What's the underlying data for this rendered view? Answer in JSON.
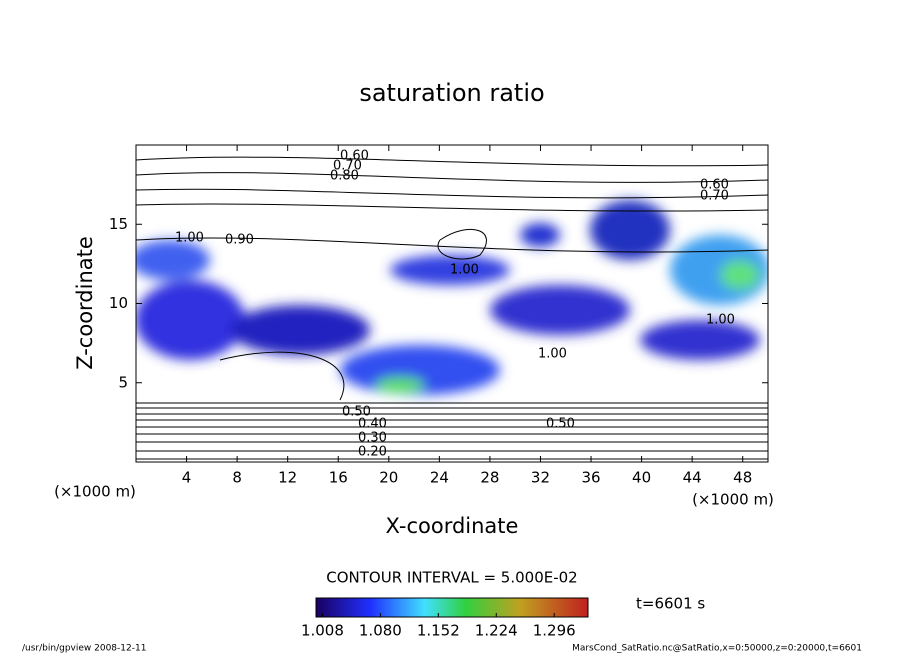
{
  "chart_data": {
    "type": "contour",
    "title": "saturation ratio",
    "xlabel": "X-coordinate",
    "ylabel": "Z-coordinate",
    "x_unit": "(×1000 m)",
    "y_unit": "(×1000 m)",
    "xlim": [
      0,
      50
    ],
    "xticks": [
      4,
      8,
      12,
      16,
      20,
      24,
      28,
      32,
      36,
      40,
      44,
      48
    ],
    "ylim": [
      0,
      20
    ],
    "yticks": [
      5,
      10,
      15
    ],
    "contour_interval": "CONTOUR INTERVAL = 5.000E-02",
    "time_label": "t=6601 s",
    "colorbar": {
      "clim": [
        1.0,
        1.338
      ],
      "ticks": [
        1.008,
        {
          "value": 1.08,
          "label": "1.080"
        },
        1.152,
        1.224,
        1.296
      ]
    },
    "contour_labels": [
      "0.60",
      "0.70",
      "0.80",
      "1.00",
      "0.90",
      "1.00",
      "1.00",
      "1.00",
      "0.60",
      "0.70",
      "0.50",
      "0.40",
      "0.30",
      "0.20",
      "0.50"
    ],
    "footer_left": "/usr/bin/gpview   2008-12-11",
    "footer_right": "MarsCond_SatRatio.nc@SatRatio,x=0:50000,z=0:20000,t=6601"
  }
}
